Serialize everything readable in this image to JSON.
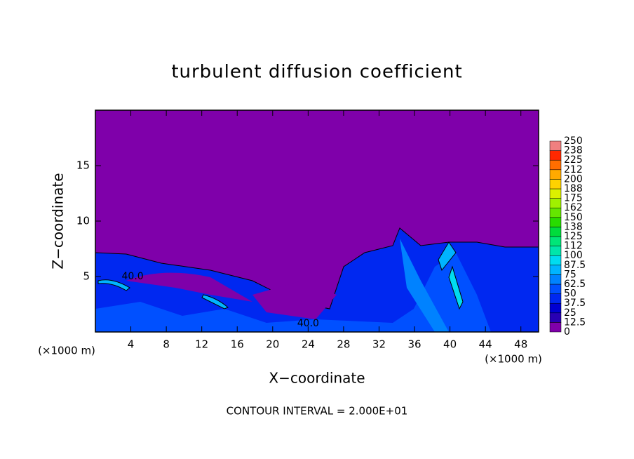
{
  "chart_data": {
    "type": "contour",
    "title": "turbulent diffusion coefficient",
    "x_label": "X−coordinate",
    "y_label": "Z−coordinate",
    "x_unit_labels": [
      "(×1000 m)",
      "(×1000 m)"
    ],
    "footnote": "CONTOUR INTERVAL = 2.000E+01",
    "xlim": [
      0,
      50
    ],
    "xticks": [
      4,
      8,
      12,
      16,
      20,
      24,
      28,
      32,
      36,
      40,
      44,
      48
    ],
    "ylim": [
      0,
      20
    ],
    "yticks": [
      5,
      10,
      15
    ],
    "background_color": "#7f00aa",
    "annotations": [
      {
        "text": "40.0",
        "x": 4.2,
        "y": 5
      },
      {
        "text": "40.0",
        "x": 24,
        "y": 0.75
      }
    ],
    "colorbar": {
      "ticks": [
        0,
        12.5,
        25,
        37.5,
        50,
        62.5,
        75,
        87.5,
        100,
        {
          "value": 112.5,
          "label": "112"
        },
        125,
        {
          "value": 137.5,
          "label": "138"
        },
        150,
        {
          "value": 162.5,
          "label": "162"
        },
        175,
        {
          "value": 187.5,
          "label": "188"
        },
        200,
        {
          "value": 212.5,
          "label": "212"
        },
        225,
        {
          "value": 237.5,
          "label": "238"
        },
        250
      ],
      "colors": [
        "#7f00aa",
        "#2800b4",
        "#0000d2",
        "#0028f0",
        "#0050ff",
        "#0082ff",
        "#00b4ff",
        "#00dcf0",
        "#00e6aa",
        "#00e678",
        "#00dc3c",
        "#28dc00",
        "#64e600",
        "#a0f000",
        "#dcf000",
        "#ffd200",
        "#ffaa00",
        "#ff6e00",
        "#ff2800",
        "#f08080"
      ]
    }
  }
}
